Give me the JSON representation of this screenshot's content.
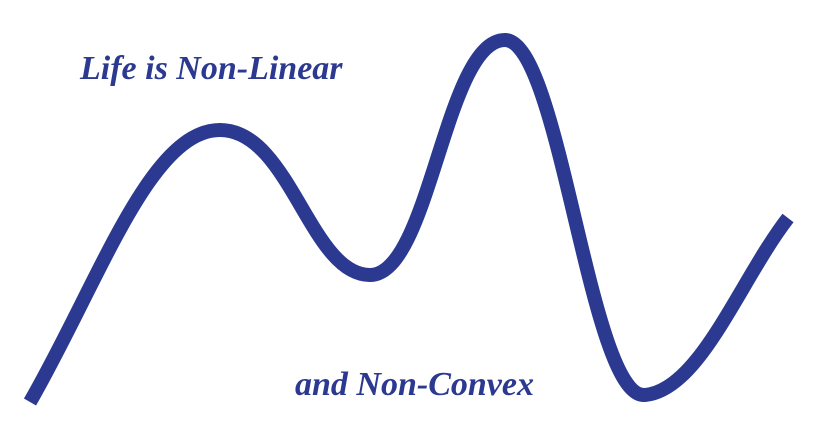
{
  "captions": {
    "top": "Life is Non-Linear",
    "bottom": "and Non-Convex"
  },
  "colors": {
    "curve": "#2b3990",
    "text": "#2b3990",
    "background": "#ffffff"
  }
}
